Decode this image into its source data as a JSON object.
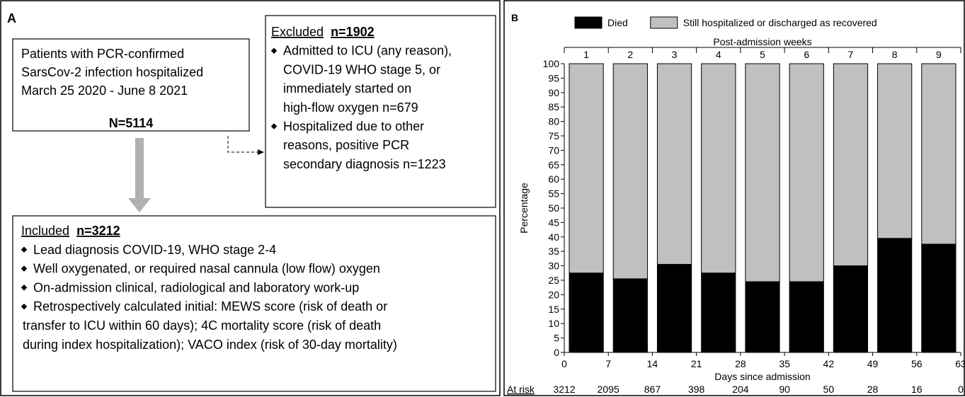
{
  "panel_a": {
    "label": "A",
    "patients": {
      "lines": [
        "Patients with PCR-confirmed",
        "SarsCov-2 infection hospitalized",
        "March 25 2020 - June 8 2021"
      ],
      "total": "N=5114"
    },
    "excluded": {
      "heading": "Excluded",
      "count": "n=1902",
      "items": [
        [
          "Admitted to ICU (any reason),",
          "COVID-19 WHO stage 5, or",
          "immediately started on",
          "high-flow oxygen      n=679"
        ],
        [
          "Hospitalized due to other",
          "reasons,  positive  PCR",
          "secondary diagnosis  n=1223"
        ]
      ]
    },
    "included": {
      "heading": "Included",
      "count": "n=3212",
      "items": [
        [
          "Lead diagnosis COVID-19, WHO stage 2-4"
        ],
        [
          "Well oxygenated, or required nasal cannula (low flow) oxygen"
        ],
        [
          "On-admission clinical, radiological and laboratory work-up"
        ],
        [
          "Retrospectively calculated initial: MEWS score (risk of death or",
          "transfer to ICU within 60 days); 4C mortality score (risk of death",
          "during index hospitalization); VACO index (risk of 30-day mortality)"
        ]
      ]
    }
  },
  "chart_data": {
    "type": "stacked_bar",
    "panel_label": "B",
    "top_axis_label": "Post-admission weeks",
    "xlabel": "Days since admission",
    "ylabel": "Percentage",
    "categories": [
      "1",
      "2",
      "3",
      "4",
      "5",
      "6",
      "7",
      "8",
      "9"
    ],
    "series": [
      {
        "name": "Died",
        "color": "#000000",
        "values": [
          27.5,
          25.5,
          30.5,
          27.5,
          24.5,
          24.5,
          30,
          39.5,
          37.5
        ]
      },
      {
        "name": "Still hospitalized or discharged as recovered",
        "color": "#c0c0c0",
        "values": [
          72.5,
          74.5,
          69.5,
          72.5,
          75.5,
          75.5,
          70,
          60.5,
          62.5
        ]
      }
    ],
    "xlim": [
      0,
      63
    ],
    "xticks": [
      0,
      7,
      14,
      21,
      28,
      35,
      42,
      49,
      56,
      63
    ],
    "ylim": [
      0,
      100
    ],
    "yticks": [
      0,
      5,
      10,
      15,
      20,
      25,
      30,
      35,
      40,
      45,
      50,
      55,
      60,
      65,
      70,
      75,
      80,
      85,
      90,
      95,
      100
    ],
    "at_risk": {
      "label": "At risk",
      "values": [
        3212,
        2095,
        867,
        398,
        204,
        90,
        50,
        28,
        16,
        0
      ]
    }
  }
}
